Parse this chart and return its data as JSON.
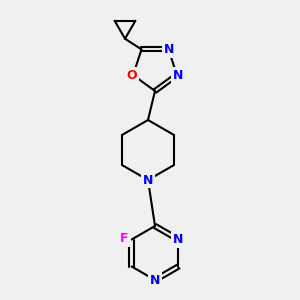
{
  "background_color": "#f0f0f0",
  "bond_color": "#000000",
  "bond_width": 1.5,
  "atom_colors": {
    "N": "#0000ff",
    "O": "#ff0000",
    "F": "#ff00ff",
    "C": "#000000"
  },
  "fig_size": [
    3.0,
    3.0
  ],
  "dpi": 100,
  "xlim": [
    0,
    300
  ],
  "ylim": [
    0,
    300
  ]
}
